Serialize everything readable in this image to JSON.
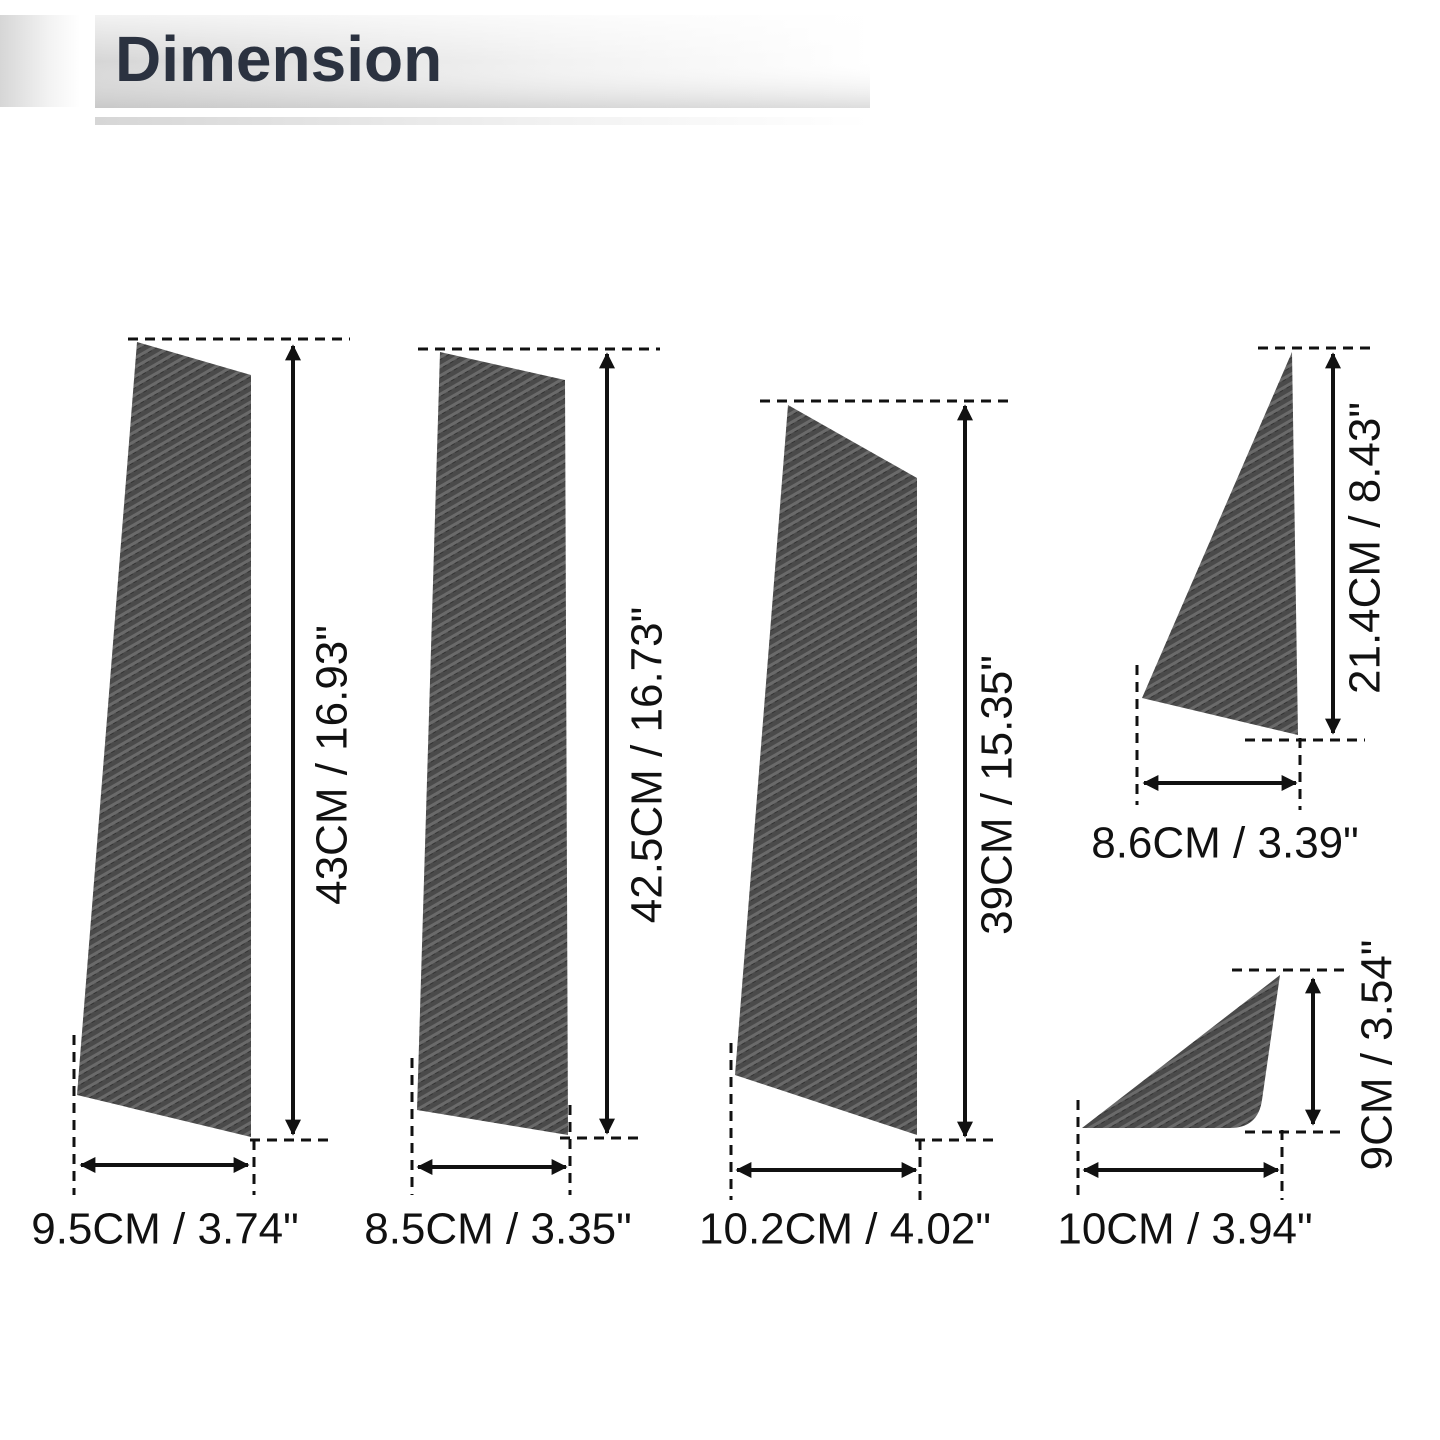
{
  "header": {
    "title": "Dimension"
  },
  "pieces": [
    {
      "height": "43CM / 16.93\"",
      "width": "9.5CM / 3.74\""
    },
    {
      "height": "42.5CM / 16.73\"",
      "width": "8.5CM / 3.35\""
    },
    {
      "height": "39CM / 15.35\"",
      "width": "10.2CM / 4.02\""
    },
    {
      "height": "21.4CM / 8.43\"",
      "width": "8.6CM / 3.39\""
    },
    {
      "height": "9CM / 3.54\"",
      "width": "10CM / 3.94\""
    }
  ]
}
